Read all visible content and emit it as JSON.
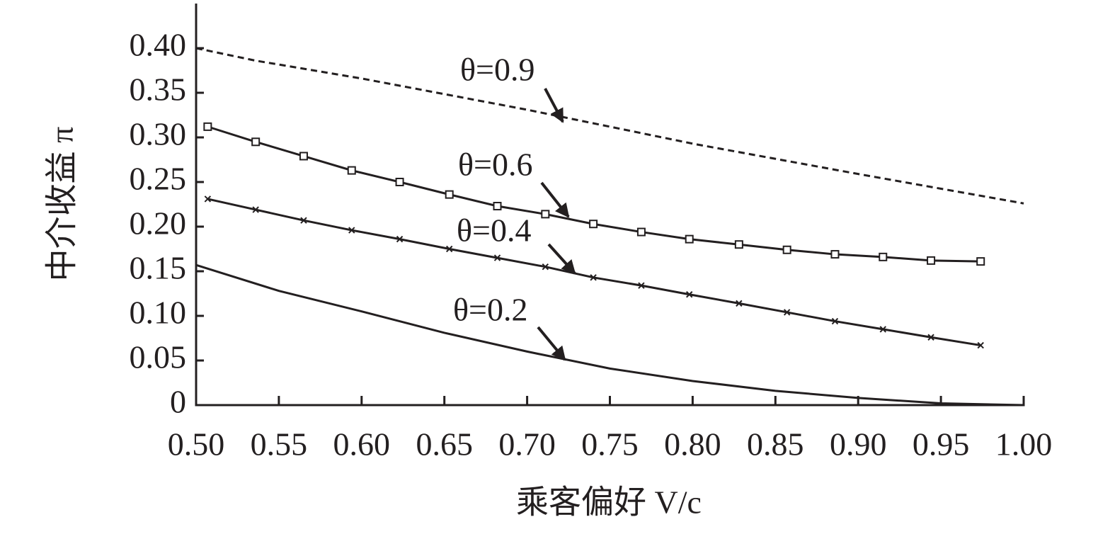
{
  "chart_data": {
    "type": "line",
    "xlabel": "乘客偏好 V/c",
    "ylabel": "中介收益 π",
    "xlim": [
      0.5,
      1.0
    ],
    "ylim": [
      0,
      0.45
    ],
    "xticks": [
      {
        "value": 0.5,
        "label": "0.50"
      },
      0.55,
      {
        "value": 0.6,
        "label": "0.60"
      },
      0.65,
      {
        "value": 0.7,
        "label": "0.70"
      },
      0.75,
      {
        "value": 0.8,
        "label": "0.80"
      },
      0.85,
      {
        "value": 0.9,
        "label": "0.90"
      },
      0.95,
      {
        "value": 1.0,
        "label": "1.00"
      }
    ],
    "yticks": [
      0,
      0.05,
      {
        "value": 0.1,
        "label": "0.10"
      },
      0.15,
      {
        "value": 0.2,
        "label": "0.20"
      },
      0.25,
      {
        "value": 0.3,
        "label": "0.30"
      },
      0.35,
      {
        "value": 0.4,
        "label": "0.40"
      }
    ],
    "series": [
      {
        "name": "θ=0.9",
        "color": "#231f20",
        "dash": true,
        "marker": "none",
        "x": [
          0.5,
          0.536,
          0.6,
          0.7,
          0.8,
          0.9,
          1.0
        ],
        "values": [
          0.4,
          0.386,
          0.366,
          0.331,
          0.293,
          0.259,
          0.226
        ]
      },
      {
        "name": "θ=0.6",
        "color": "#231f20",
        "dash": false,
        "marker": "square",
        "x": [
          0.507,
          0.536,
          0.565,
          0.594,
          0.623,
          0.653,
          0.682,
          0.711,
          0.74,
          0.769,
          0.798,
          0.828,
          0.857,
          0.886,
          0.915,
          0.944,
          0.974
        ],
        "values": [
          0.312,
          0.295,
          0.279,
          0.263,
          0.25,
          0.236,
          0.223,
          0.214,
          0.203,
          0.194,
          0.186,
          0.18,
          0.174,
          0.169,
          0.166,
          0.162,
          0.161
        ]
      },
      {
        "name": "θ=0.4",
        "color": "#231f20",
        "dash": false,
        "marker": "cross",
        "x": [
          0.507,
          0.536,
          0.565,
          0.594,
          0.623,
          0.653,
          0.682,
          0.711,
          0.74,
          0.769,
          0.798,
          0.828,
          0.857,
          0.886,
          0.915,
          0.944,
          0.974
        ],
        "values": [
          0.231,
          0.219,
          0.207,
          0.196,
          0.186,
          0.175,
          0.165,
          0.155,
          0.143,
          0.134,
          0.124,
          0.114,
          0.104,
          0.094,
          0.085,
          0.076,
          0.067
        ]
      },
      {
        "name": "θ=0.2",
        "color": "#231f20",
        "dash": false,
        "marker": "none",
        "x": [
          0.5,
          0.55,
          0.6,
          0.65,
          0.7,
          0.75,
          0.8,
          0.85,
          0.9,
          0.95,
          1.0
        ],
        "values": [
          0.157,
          0.128,
          0.105,
          0.081,
          0.06,
          0.041,
          0.027,
          0.016,
          0.008,
          0.002,
          0
        ]
      }
    ]
  }
}
